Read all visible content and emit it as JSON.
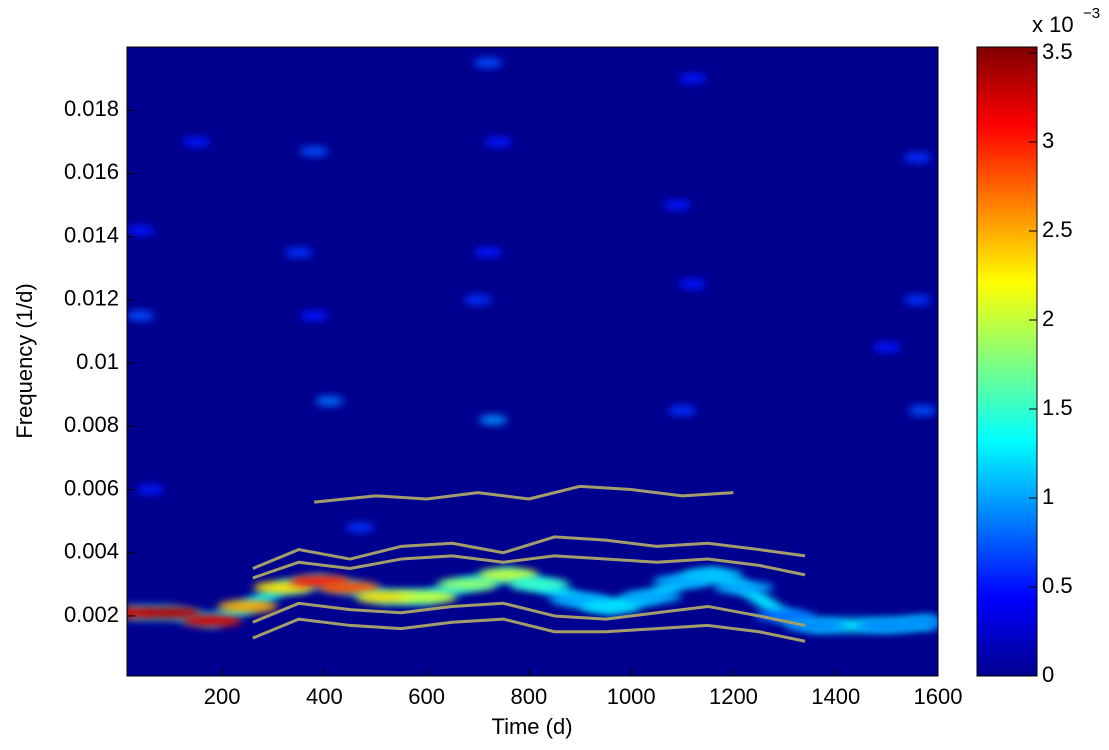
{
  "chart_data": {
    "type": "spectrogram",
    "xlabel": "Time (d)",
    "ylabel": "Frequency (1/d)",
    "xlim": [
      14,
      1600
    ],
    "ylim": [
      0.0001,
      0.02
    ],
    "xticks": [
      200,
      400,
      600,
      800,
      1000,
      1200,
      1400,
      1600
    ],
    "yticks": [
      0.002,
      0.004,
      0.006,
      0.008,
      0.01,
      0.012,
      0.014,
      0.016,
      0.018
    ],
    "background": "#00008f",
    "colorbar": {
      "clim": [
        0,
        3.5
      ],
      "ticks": [
        0,
        0.5,
        1,
        1.5,
        2,
        2.5,
        3,
        3.5
      ],
      "base": "x 10",
      "exponent": "−3"
    },
    "ridge": {
      "x": [
        14,
        100,
        180,
        250,
        320,
        390,
        450,
        520,
        600,
        680,
        760,
        820,
        900,
        960,
        1040,
        1100,
        1160,
        1220,
        1300,
        1360,
        1500,
        1590
      ],
      "y": [
        0.0021,
        0.0021,
        0.00185,
        0.0023,
        0.0029,
        0.0031,
        0.0029,
        0.0026,
        0.0026,
        0.003,
        0.0033,
        0.003,
        0.0025,
        0.0023,
        0.0026,
        0.0031,
        0.0033,
        0.0029,
        0.002,
        0.0017,
        0.0017,
        0.0018
      ],
      "values": [
        3.2,
        3.3,
        3.2,
        2.5,
        2.3,
        3.0,
        2.8,
        2.3,
        2.0,
        1.8,
        2.0,
        1.5,
        1.0,
        1.2,
        1.0,
        1.0,
        1.1,
        1.0,
        0.8,
        0.9,
        0.9,
        0.9
      ]
    },
    "blobs": {
      "x": [
        40,
        150,
        60,
        380,
        410,
        350,
        720,
        730,
        700,
        740,
        1100,
        1090,
        1120,
        1500,
        1560,
        1570,
        380,
        720,
        1120,
        470,
        1560,
        40
      ],
      "y": [
        0.0115,
        0.017,
        0.006,
        0.0167,
        0.0088,
        0.0135,
        0.0195,
        0.0082,
        0.012,
        0.017,
        0.0085,
        0.015,
        0.019,
        0.0105,
        0.0165,
        0.0085,
        0.0115,
        0.0135,
        0.0125,
        0.0048,
        0.012,
        0.0142
      ],
      "values": [
        0.7,
        0.5,
        0.5,
        0.7,
        0.8,
        0.6,
        0.7,
        0.9,
        0.6,
        0.5,
        0.6,
        0.5,
        0.5,
        0.5,
        0.6,
        0.7,
        0.5,
        0.5,
        0.5,
        0.6,
        0.6,
        0.5
      ]
    },
    "contour_color": "#a39d6b",
    "contours": [
      {
        "x": [
          260,
          350,
          450,
          550,
          650,
          750,
          850,
          950,
          1050,
          1150,
          1250,
          1340
        ],
        "y": [
          0.0035,
          0.0041,
          0.0038,
          0.0042,
          0.0043,
          0.004,
          0.0045,
          0.0044,
          0.0042,
          0.0043,
          0.0041,
          0.0039
        ]
      },
      {
        "x": [
          260,
          350,
          450,
          550,
          650,
          750,
          850,
          950,
          1050,
          1150,
          1250,
          1340
        ],
        "y": [
          0.0032,
          0.0037,
          0.0035,
          0.0038,
          0.0039,
          0.0037,
          0.0039,
          0.0038,
          0.0037,
          0.0038,
          0.0036,
          0.0033
        ]
      },
      {
        "x": [
          260,
          350,
          450,
          550,
          650,
          750,
          850,
          950,
          1050,
          1150,
          1250,
          1340
        ],
        "y": [
          0.0018,
          0.0024,
          0.0022,
          0.0021,
          0.0023,
          0.0024,
          0.002,
          0.0019,
          0.0021,
          0.0023,
          0.002,
          0.0017
        ]
      },
      {
        "x": [
          260,
          350,
          450,
          550,
          650,
          750,
          850,
          950,
          1050,
          1150,
          1250,
          1340
        ],
        "y": [
          0.0013,
          0.0019,
          0.0017,
          0.0016,
          0.0018,
          0.0019,
          0.0015,
          0.0015,
          0.0016,
          0.0017,
          0.0015,
          0.0012
        ]
      },
      {
        "x": [
          380,
          500,
          600,
          700,
          800,
          900,
          1000,
          1100,
          1200
        ],
        "y": [
          0.0056,
          0.0058,
          0.0057,
          0.0059,
          0.0057,
          0.0061,
          0.006,
          0.0058,
          0.0059
        ]
      }
    ]
  }
}
